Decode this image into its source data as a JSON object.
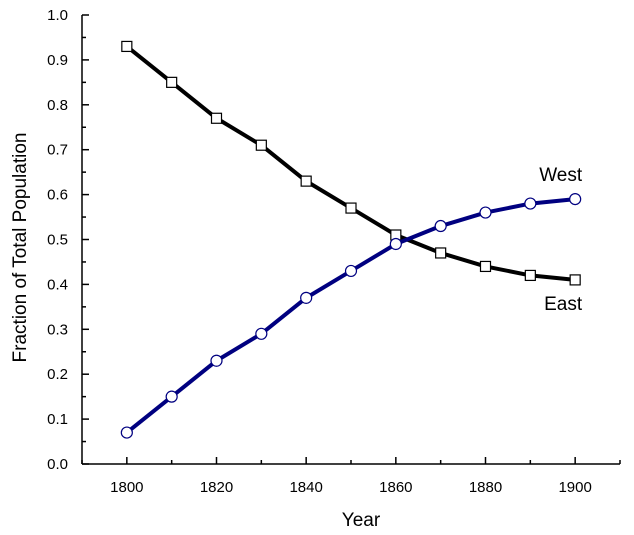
{
  "chart_data": {
    "type": "line",
    "title": "",
    "xlabel": "Year",
    "ylabel": "Fraction of Total Population",
    "xlim": [
      1790,
      1910
    ],
    "ylim": [
      0.0,
      1.0
    ],
    "x_ticks": [
      "1800",
      "1820",
      "1840",
      "1860",
      "1880",
      "1900"
    ],
    "y_ticks": [
      "0.0",
      "0.1",
      "0.2",
      "0.3",
      "0.4",
      "0.5",
      "0.6",
      "0.7",
      "0.8",
      "0.9",
      "1.0"
    ],
    "grid": false,
    "x": [
      1800,
      1810,
      1820,
      1830,
      1840,
      1850,
      1860,
      1870,
      1880,
      1890,
      1900
    ],
    "series": [
      {
        "name": "East",
        "color": "#000000",
        "marker": "square",
        "values": [
          0.93,
          0.85,
          0.77,
          0.71,
          0.63,
          0.57,
          0.51,
          0.47,
          0.44,
          0.42,
          0.41
        ]
      },
      {
        "name": "West",
        "color": "#000080",
        "marker": "circle",
        "values": [
          0.07,
          0.15,
          0.23,
          0.29,
          0.37,
          0.43,
          0.49,
          0.53,
          0.56,
          0.58,
          0.59
        ]
      }
    ]
  }
}
